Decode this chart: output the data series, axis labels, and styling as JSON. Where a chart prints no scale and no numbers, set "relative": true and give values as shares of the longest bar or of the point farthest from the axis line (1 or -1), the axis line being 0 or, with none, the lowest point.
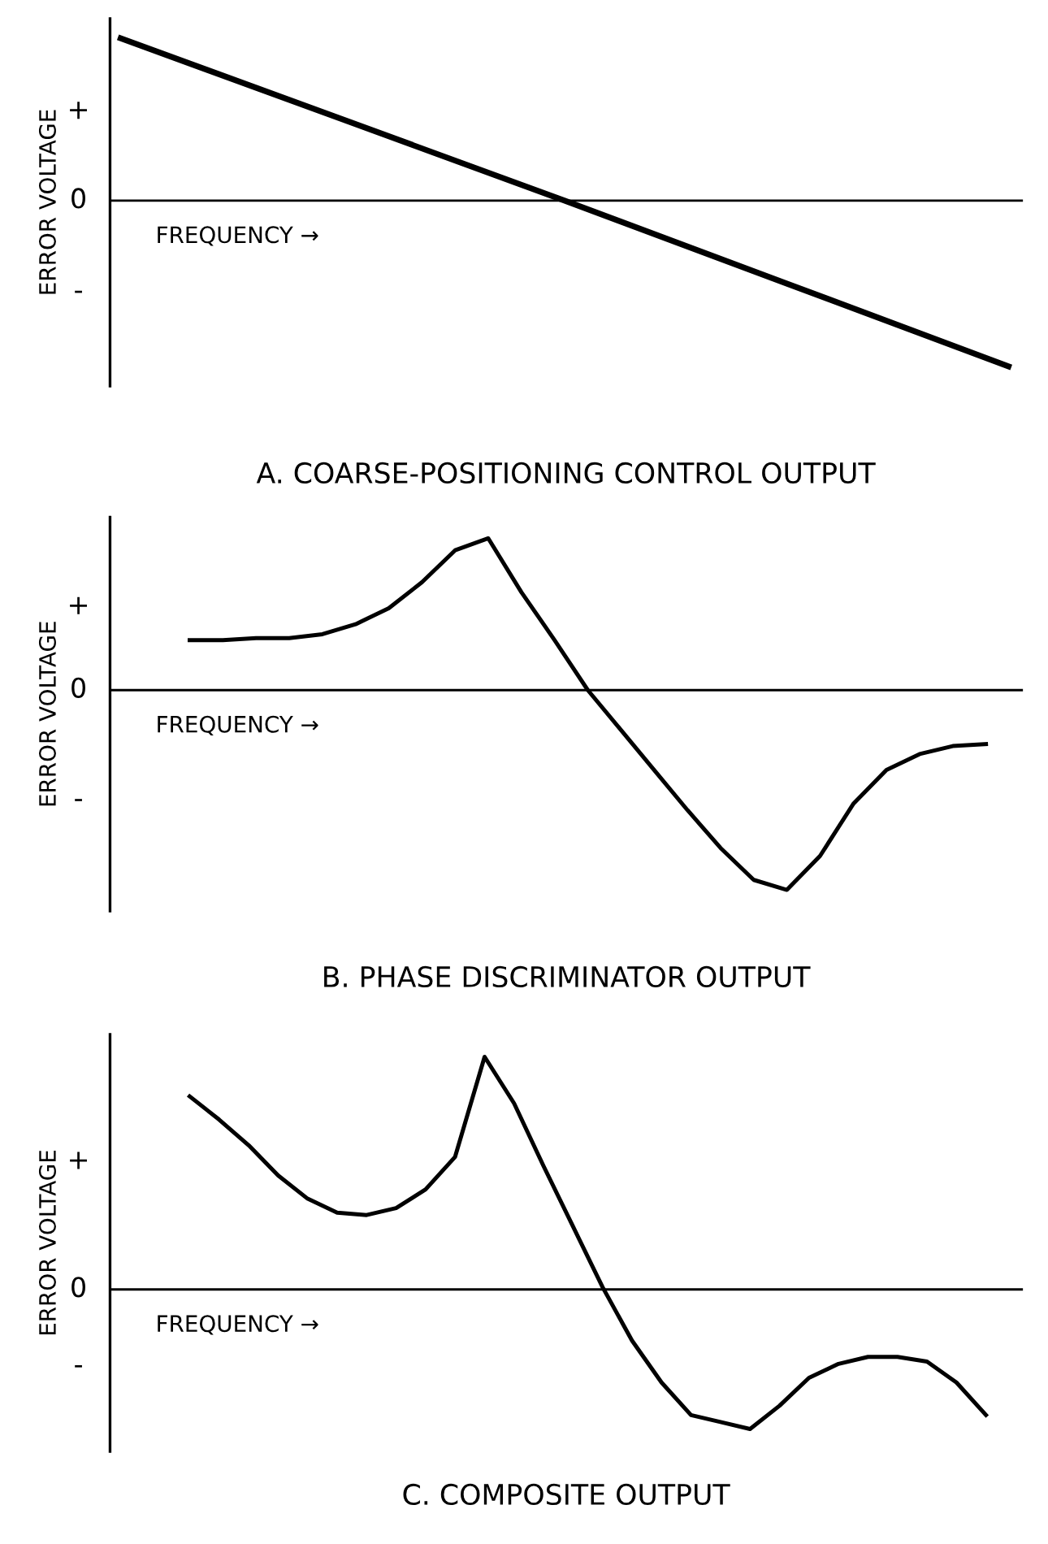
{
  "chart_data": [
    {
      "type": "line",
      "relative": true,
      "title": "A. COARSE-POSITIONING CONTROL OUTPUT",
      "ylabel": "ERROR VOLTAGE",
      "categories": [
        null,
        null,
        null,
        null,
        null
      ],
      "annotations": [
        "FREQUENCY →",
        "+",
        "0",
        "-"
      ],
      "series": [
        {
          "color": "#000000",
          "values": [
            0.98,
            0.49,
            0.0,
            -0.5,
            -1
          ]
        }
      ]
    },
    {
      "type": "line",
      "relative": true,
      "title": "B. PHASE DISCRIMINATOR OUTPUT",
      "ylabel": "ERROR VOLTAGE",
      "categories": [
        null,
        null,
        null,
        null,
        null,
        null,
        null,
        null,
        null,
        null,
        null,
        null,
        null,
        null,
        null,
        null,
        null,
        null,
        null,
        null,
        null,
        null,
        null,
        null,
        null
      ],
      "annotations": [
        "FREQUENCY →",
        "+",
        "0",
        "-"
      ],
      "series": [
        {
          "color": "#000000",
          "values": [
            0.25,
            0.25,
            0.26,
            0.26,
            0.28,
            0.33,
            0.41,
            0.54,
            0.7,
            0.76,
            0.49,
            0.25,
            0,
            -0.2,
            -0.4,
            -0.6,
            -0.79,
            -0.95,
            -1,
            -0.83,
            -0.57,
            -0.4,
            -0.32,
            -0.28,
            -0.27
          ]
        }
      ]
    },
    {
      "type": "line",
      "relative": true,
      "title": "C. COMPOSITE OUTPUT",
      "ylabel": "ERROR VOLTAGE",
      "categories": [
        null,
        null,
        null,
        null,
        null,
        null,
        null,
        null,
        null,
        null,
        null,
        null,
        null,
        null,
        null,
        null,
        null,
        null,
        null,
        null,
        null,
        null,
        null,
        null,
        null,
        null,
        null,
        null
      ],
      "annotations": [
        "FREQUENCY →",
        "+",
        "0",
        "-"
      ],
      "series": [
        {
          "color": "#000000",
          "values": [
            0.83,
            0.73,
            0.62,
            0.49,
            0.39,
            0.33,
            0.32,
            0.35,
            0.43,
            0.57,
            1.0,
            0.8,
            0.53,
            0.27,
            0.01,
            -0.22,
            -0.4,
            -0.54,
            -0.57,
            -0.6,
            -0.5,
            -0.38,
            -0.32,
            -0.29,
            -0.29,
            -0.31,
            -0.4,
            -0.54
          ]
        }
      ]
    }
  ]
}
